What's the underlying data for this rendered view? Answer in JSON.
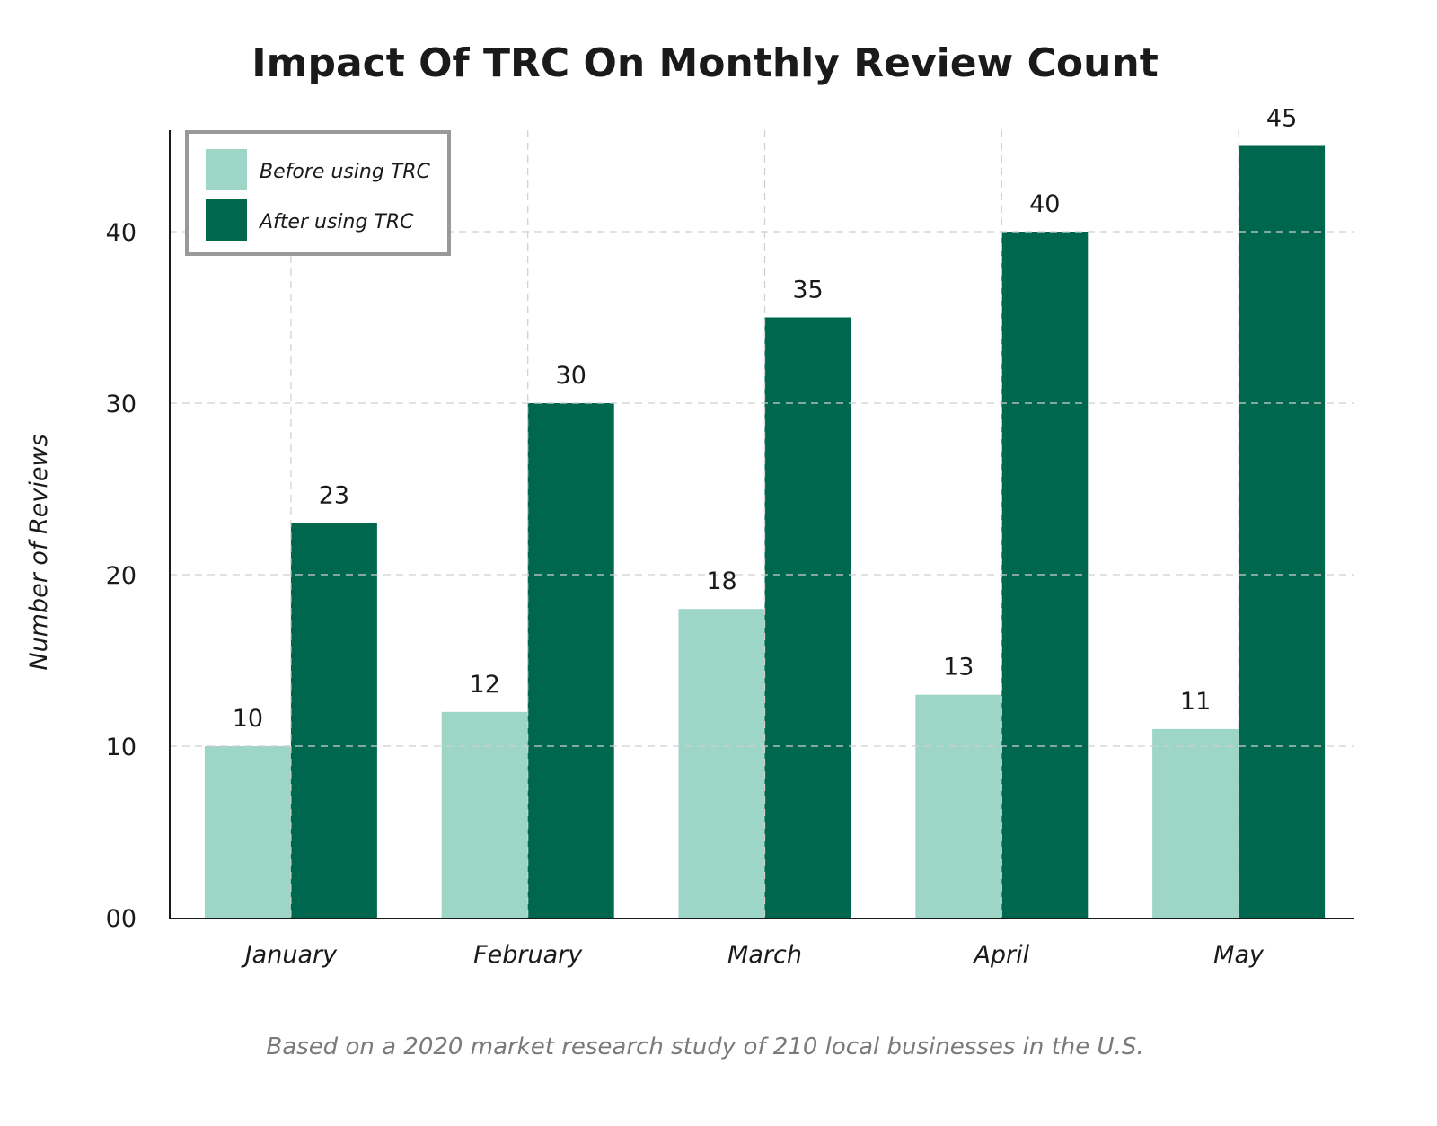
{
  "chart_data": {
    "type": "bar",
    "title": "Impact Of TRC On Monthly Review Count",
    "xlabel": "",
    "ylabel": "Number of Reviews",
    "categories": [
      "January",
      "February",
      "March",
      "April",
      "May"
    ],
    "series": [
      {
        "name": "Before using TRC",
        "color": "#9dd5c7",
        "values": [
          10,
          12,
          18,
          13,
          11
        ]
      },
      {
        "name": "After using TRC",
        "color": "#00674f",
        "values": [
          23,
          30,
          35,
          40,
          45
        ]
      }
    ],
    "ylim": [
      0,
      46
    ],
    "yticks": [
      0,
      10,
      20,
      30,
      40
    ],
    "ytick_labels": [
      "00",
      "10",
      "20",
      "30",
      "40"
    ],
    "grid": true,
    "legend_position": "top-left",
    "caption": "Based on a 2020 market research study of 210 local businesses in the U.S."
  }
}
